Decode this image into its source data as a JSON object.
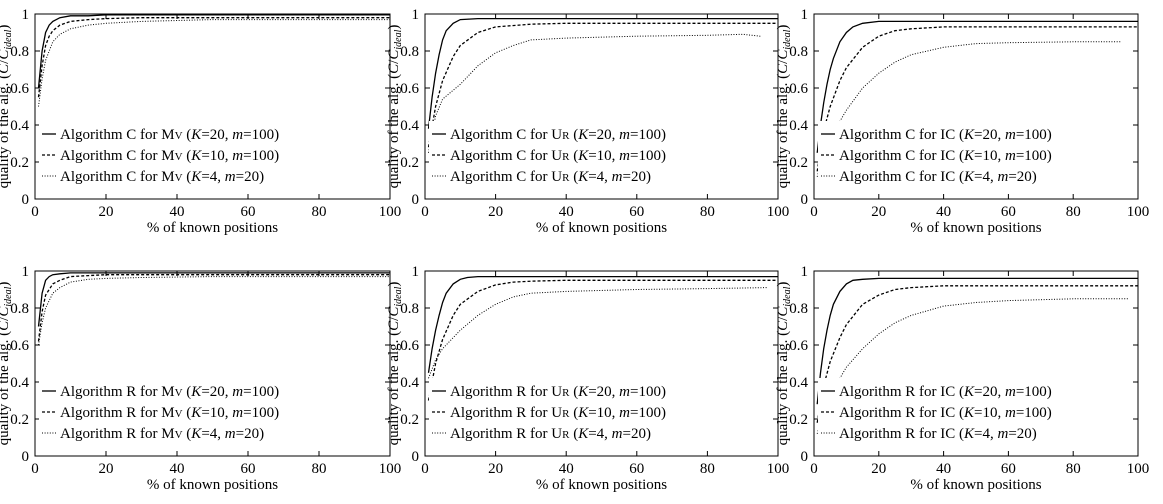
{
  "chart_data": [
    {
      "type": "line",
      "xlabel": "% of known positions",
      "ylabel": "quality of the alg. (C/C_ideal)",
      "xlim": [
        0,
        100
      ],
      "ylim": [
        0,
        1
      ],
      "xticks": [
        "0",
        "20",
        "40",
        "60",
        "80",
        "100"
      ],
      "yticks": [
        "0",
        "0.2",
        "0.4",
        "0.6",
        "0.8",
        "1"
      ],
      "grid": false,
      "legend_position": "bottom-left",
      "series": [
        {
          "name": "Algorithm C for Mv (K=20, m=100)",
          "style": "solid",
          "x": [
            1,
            2,
            3,
            4,
            5,
            7,
            10,
            15,
            20,
            30,
            50,
            70,
            100
          ],
          "y": [
            0.6,
            0.8,
            0.9,
            0.94,
            0.96,
            0.98,
            0.99,
            0.99,
            0.995,
            0.995,
            0.995,
            0.995,
            0.995
          ]
        },
        {
          "name": "Algorithm C for Mv (K=10, m=100)",
          "style": "dashed",
          "x": [
            1,
            2,
            3,
            4,
            5,
            7,
            10,
            15,
            20,
            30,
            50,
            70,
            100
          ],
          "y": [
            0.55,
            0.72,
            0.83,
            0.88,
            0.91,
            0.94,
            0.96,
            0.97,
            0.975,
            0.98,
            0.98,
            0.98,
            0.98
          ]
        },
        {
          "name": "Algorithm C for Mv (K=4, m=20)",
          "style": "dotted",
          "x": [
            1,
            2,
            3,
            5,
            7,
            10,
            15,
            20,
            30,
            50,
            70,
            100
          ],
          "y": [
            0.5,
            0.65,
            0.75,
            0.85,
            0.89,
            0.92,
            0.94,
            0.95,
            0.96,
            0.97,
            0.97,
            0.97
          ]
        }
      ]
    },
    {
      "type": "line",
      "xlabel": "% of known positions",
      "ylabel": "quality of the alg. (C/C_ideal)",
      "xlim": [
        0,
        100
      ],
      "ylim": [
        0,
        1
      ],
      "xticks": [
        "0",
        "20",
        "40",
        "60",
        "80",
        "100"
      ],
      "yticks": [
        "0",
        "0.2",
        "0.4",
        "0.6",
        "0.8",
        "1"
      ],
      "grid": false,
      "legend_position": "bottom-left",
      "series": [
        {
          "name": "Algorithm C for Ur (K=20, m=100)",
          "style": "solid",
          "x": [
            1,
            2,
            3,
            4,
            5,
            6,
            8,
            10,
            15,
            20,
            40,
            60,
            80,
            100
          ],
          "y": [
            0.38,
            0.55,
            0.68,
            0.78,
            0.86,
            0.91,
            0.95,
            0.97,
            0.975,
            0.975,
            0.975,
            0.975,
            0.975,
            0.975
          ]
        },
        {
          "name": "Algorithm C for Ur (K=10, m=100)",
          "style": "dashed",
          "x": [
            1,
            3,
            5,
            8,
            10,
            15,
            20,
            30,
            40,
            60,
            80,
            100
          ],
          "y": [
            0.28,
            0.5,
            0.64,
            0.77,
            0.83,
            0.9,
            0.93,
            0.945,
            0.95,
            0.95,
            0.95,
            0.95
          ]
        },
        {
          "name": "Algorithm C for Ur (K=4, m=20)",
          "style": "dotted",
          "x": [
            1,
            3,
            5,
            10,
            15,
            20,
            25,
            30,
            40,
            60,
            80,
            90,
            95
          ],
          "y": [
            0.25,
            0.45,
            0.54,
            0.62,
            0.72,
            0.79,
            0.83,
            0.86,
            0.87,
            0.88,
            0.885,
            0.89,
            0.88
          ]
        }
      ]
    },
    {
      "type": "line",
      "xlabel": "% of known positions",
      "ylabel": "quality of the alg. (C/C_ideal)",
      "xlim": [
        0,
        100
      ],
      "ylim": [
        0,
        1
      ],
      "xticks": [
        "0",
        "20",
        "40",
        "60",
        "80",
        "100"
      ],
      "yticks": [
        "0",
        "0.2",
        "0.4",
        "0.6",
        "0.8",
        "1"
      ],
      "grid": false,
      "legend_position": "bottom-left",
      "series": [
        {
          "name": "Algorithm C for IC (K=20, m=100)",
          "style": "solid",
          "x": [
            1,
            2,
            3,
            4,
            5,
            6,
            8,
            10,
            12,
            15,
            20,
            40,
            60,
            80,
            100
          ],
          "y": [
            0.25,
            0.4,
            0.52,
            0.62,
            0.7,
            0.76,
            0.85,
            0.9,
            0.93,
            0.95,
            0.96,
            0.96,
            0.96,
            0.96,
            0.96
          ]
        },
        {
          "name": "Algorithm C for IC (K=10, m=100)",
          "style": "dashed",
          "x": [
            1,
            3,
            5,
            8,
            10,
            15,
            20,
            25,
            30,
            40,
            60,
            80,
            100
          ],
          "y": [
            0.15,
            0.37,
            0.5,
            0.64,
            0.71,
            0.82,
            0.88,
            0.91,
            0.92,
            0.93,
            0.93,
            0.93,
            0.93
          ]
        },
        {
          "name": "Algorithm C for IC (K=4, m=20)",
          "style": "dotted",
          "x": [
            1,
            3,
            5,
            10,
            15,
            20,
            25,
            30,
            40,
            50,
            60,
            80,
            95
          ],
          "y": [
            0.12,
            0.25,
            0.33,
            0.48,
            0.6,
            0.68,
            0.74,
            0.78,
            0.82,
            0.84,
            0.845,
            0.85,
            0.85
          ]
        }
      ]
    },
    {
      "type": "line",
      "xlabel": "% of known positions",
      "ylabel": "quality of the alg. (C/C_ideal)",
      "xlim": [
        0,
        100
      ],
      "ylim": [
        0,
        1
      ],
      "xticks": [
        "0",
        "20",
        "40",
        "60",
        "80",
        "100"
      ],
      "yticks": [
        "0",
        "0.2",
        "0.4",
        "0.6",
        "0.8",
        "1"
      ],
      "grid": false,
      "legend_position": "bottom-left",
      "series": [
        {
          "name": "Algorithm R for Mv (K=20, m=100)",
          "style": "solid",
          "x": [
            1,
            2,
            3,
            4,
            5,
            7,
            10,
            20,
            50,
            100
          ],
          "y": [
            0.7,
            0.88,
            0.95,
            0.97,
            0.98,
            0.985,
            0.99,
            0.99,
            0.99,
            0.99
          ]
        },
        {
          "name": "Algorithm R for Mv (K=10, m=100)",
          "style": "dashed",
          "x": [
            1,
            2,
            3,
            5,
            7,
            10,
            15,
            20,
            30,
            50,
            100
          ],
          "y": [
            0.62,
            0.78,
            0.87,
            0.93,
            0.95,
            0.97,
            0.975,
            0.98,
            0.98,
            0.98,
            0.98
          ]
        },
        {
          "name": "Algorithm R for Mv (K=4, m=20)",
          "style": "dotted",
          "x": [
            1,
            2,
            3,
            5,
            7,
            10,
            15,
            20,
            30,
            50,
            100
          ],
          "y": [
            0.6,
            0.72,
            0.8,
            0.88,
            0.91,
            0.94,
            0.955,
            0.96,
            0.965,
            0.97,
            0.97
          ]
        }
      ]
    },
    {
      "type": "line",
      "xlabel": "% of known positions",
      "ylabel": "quality of the alg. (C/C_ideal)",
      "xlim": [
        0,
        100
      ],
      "ylim": [
        0,
        1
      ],
      "xticks": [
        "0",
        "20",
        "40",
        "60",
        "80",
        "100"
      ],
      "yticks": [
        "0",
        "0.2",
        "0.4",
        "0.6",
        "0.8",
        "1"
      ],
      "grid": false,
      "legend_position": "bottom-left",
      "series": [
        {
          "name": "Algorithm R for Ur (K=20, m=100)",
          "style": "solid",
          "x": [
            1,
            2,
            3,
            4,
            5,
            6,
            8,
            10,
            12,
            15,
            20,
            40,
            60,
            80,
            100
          ],
          "y": [
            0.45,
            0.58,
            0.68,
            0.76,
            0.83,
            0.88,
            0.93,
            0.955,
            0.965,
            0.97,
            0.97,
            0.97,
            0.97,
            0.97,
            0.97
          ]
        },
        {
          "name": "Algorithm R for Ur (K=10, m=100)",
          "style": "dashed",
          "x": [
            1,
            3,
            5,
            8,
            10,
            15,
            20,
            25,
            30,
            40,
            60,
            80,
            100
          ],
          "y": [
            0.3,
            0.5,
            0.63,
            0.76,
            0.82,
            0.89,
            0.925,
            0.94,
            0.945,
            0.95,
            0.95,
            0.95,
            0.95
          ]
        },
        {
          "name": "Algorithm R for Ur (K=4, m=20)",
          "style": "dotted",
          "x": [
            1,
            3,
            5,
            10,
            15,
            20,
            25,
            30,
            40,
            60,
            80,
            97
          ],
          "y": [
            0.42,
            0.52,
            0.58,
            0.68,
            0.76,
            0.82,
            0.86,
            0.88,
            0.89,
            0.9,
            0.905,
            0.91
          ]
        }
      ]
    },
    {
      "type": "line",
      "xlabel": "% of known positions",
      "ylabel": "quality of the alg. (C/C_ideal)",
      "xlim": [
        0,
        100
      ],
      "ylim": [
        0,
        1
      ],
      "xticks": [
        "0",
        "20",
        "40",
        "60",
        "80",
        "100"
      ],
      "yticks": [
        "0",
        "0.2",
        "0.4",
        "0.6",
        "0.8",
        "1"
      ],
      "grid": false,
      "legend_position": "bottom-left",
      "series": [
        {
          "name": "Algorithm R for IC (K=20, m=100)",
          "style": "solid",
          "x": [
            1,
            2,
            3,
            4,
            5,
            6,
            8,
            10,
            12,
            15,
            20,
            40,
            60,
            80,
            100
          ],
          "y": [
            0.28,
            0.45,
            0.58,
            0.68,
            0.76,
            0.82,
            0.89,
            0.93,
            0.95,
            0.955,
            0.96,
            0.96,
            0.96,
            0.96,
            0.96
          ]
        },
        {
          "name": "Algorithm R for IC (K=10, m=100)",
          "style": "dashed",
          "x": [
            1,
            3,
            5,
            8,
            10,
            15,
            20,
            25,
            30,
            40,
            60,
            80,
            100
          ],
          "y": [
            0.18,
            0.38,
            0.51,
            0.64,
            0.71,
            0.82,
            0.87,
            0.9,
            0.91,
            0.92,
            0.92,
            0.92,
            0.92
          ]
        },
        {
          "name": "Algorithm R for IC (K=4, m=20)",
          "style": "dotted",
          "x": [
            1,
            3,
            5,
            10,
            15,
            20,
            25,
            30,
            40,
            50,
            60,
            80,
            97
          ],
          "y": [
            0.12,
            0.25,
            0.33,
            0.48,
            0.58,
            0.66,
            0.72,
            0.76,
            0.81,
            0.83,
            0.84,
            0.85,
            0.85
          ]
        }
      ]
    }
  ]
}
